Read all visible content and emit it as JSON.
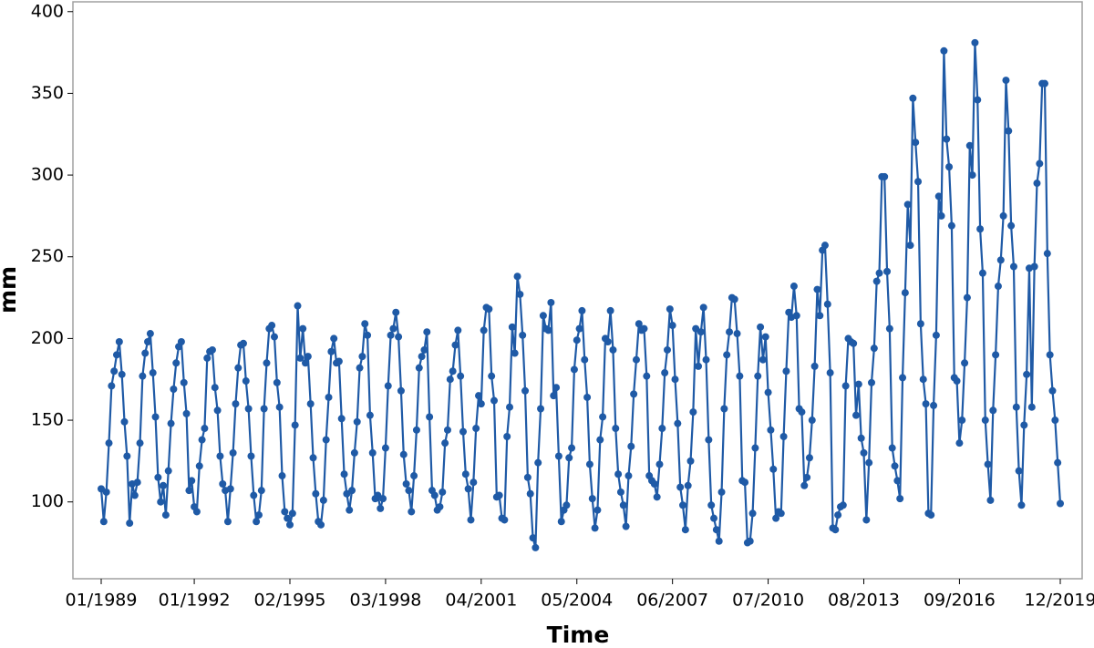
{
  "chart_data": {
    "type": "line",
    "x_label": "Time",
    "y_label": "mm",
    "color": "#1f5aa6",
    "x": [
      "01/1989",
      "02/1989",
      "03/1989",
      "04/1989",
      "05/1989",
      "06/1989",
      "07/1989",
      "08/1989",
      "09/1989",
      "10/1989",
      "11/1989",
      "12/1989",
      "01/1990",
      "02/1990",
      "03/1990",
      "04/1990",
      "05/1990",
      "06/1990",
      "07/1990",
      "08/1990",
      "09/1990",
      "10/1990",
      "11/1990",
      "12/1990",
      "01/1991",
      "02/1991",
      "03/1991",
      "04/1991",
      "05/1991",
      "06/1991",
      "07/1991",
      "08/1991",
      "09/1991",
      "10/1991",
      "11/1991",
      "12/1991",
      "01/1992",
      "02/1992",
      "03/1992",
      "04/1992",
      "05/1992",
      "06/1992",
      "07/1992",
      "08/1992",
      "09/1992",
      "10/1992",
      "11/1992",
      "12/1992",
      "01/1993",
      "02/1993",
      "03/1993",
      "04/1993",
      "05/1993",
      "06/1993",
      "07/1993",
      "08/1993",
      "09/1993",
      "10/1993",
      "11/1993",
      "12/1993",
      "01/1994",
      "02/1994",
      "03/1994",
      "04/1994",
      "05/1994",
      "06/1994",
      "07/1994",
      "08/1994",
      "09/1994",
      "10/1994",
      "11/1994",
      "12/1994",
      "01/1995",
      "02/1995",
      "03/1995",
      "04/1995",
      "05/1995",
      "06/1995",
      "07/1995",
      "08/1995",
      "09/1995",
      "10/1995",
      "11/1995",
      "12/1995",
      "01/1996",
      "02/1996",
      "03/1996",
      "04/1996",
      "05/1996",
      "06/1996",
      "07/1996",
      "08/1996",
      "09/1996",
      "10/1996",
      "11/1996",
      "12/1996",
      "01/1997",
      "02/1997",
      "03/1997",
      "04/1997",
      "05/1997",
      "06/1997",
      "07/1997",
      "08/1997",
      "09/1997",
      "10/1997",
      "11/1997",
      "12/1997",
      "01/1998",
      "02/1998",
      "03/1998",
      "04/1998",
      "05/1998",
      "06/1998",
      "07/1998",
      "08/1998",
      "09/1998",
      "10/1998",
      "11/1998",
      "12/1998",
      "01/1999",
      "02/1999",
      "03/1999",
      "04/1999",
      "05/1999",
      "06/1999",
      "07/1999",
      "08/1999",
      "09/1999",
      "10/1999",
      "11/1999",
      "12/1999",
      "01/2000",
      "02/2000",
      "03/2000",
      "04/2000",
      "05/2000",
      "06/2000",
      "07/2000",
      "08/2000",
      "09/2000",
      "10/2000",
      "11/2000",
      "12/2000",
      "01/2001",
      "02/2001",
      "03/2001",
      "04/2001",
      "05/2001",
      "06/2001",
      "07/2001",
      "08/2001",
      "09/2001",
      "10/2001",
      "11/2001",
      "12/2001",
      "01/2002",
      "02/2002",
      "03/2002",
      "04/2002",
      "05/2002",
      "06/2002",
      "07/2002",
      "08/2002",
      "09/2002",
      "10/2002",
      "11/2002",
      "12/2002",
      "01/2003",
      "02/2003",
      "03/2003",
      "04/2003",
      "05/2003",
      "06/2003",
      "07/2003",
      "08/2003",
      "09/2003",
      "10/2003",
      "11/2003",
      "12/2003",
      "01/2004",
      "02/2004",
      "03/2004",
      "04/2004",
      "05/2004",
      "06/2004",
      "07/2004",
      "08/2004",
      "09/2004",
      "10/2004",
      "11/2004",
      "12/2004",
      "01/2005",
      "02/2005",
      "03/2005",
      "04/2005",
      "05/2005",
      "06/2005",
      "07/2005",
      "08/2005",
      "09/2005",
      "10/2005",
      "11/2005",
      "12/2005",
      "01/2006",
      "02/2006",
      "03/2006",
      "04/2006",
      "05/2006",
      "06/2006",
      "07/2006",
      "08/2006",
      "09/2006",
      "10/2006",
      "11/2006",
      "12/2006",
      "01/2007",
      "02/2007",
      "03/2007",
      "04/2007",
      "05/2007",
      "06/2007",
      "07/2007",
      "08/2007",
      "09/2007",
      "10/2007",
      "11/2007",
      "12/2007",
      "01/2008",
      "02/2008",
      "03/2008",
      "04/2008",
      "05/2008",
      "06/2008",
      "07/2008",
      "08/2008",
      "09/2008",
      "10/2008",
      "11/2008",
      "12/2008",
      "01/2009",
      "02/2009",
      "03/2009",
      "04/2009",
      "05/2009",
      "06/2009",
      "07/2009",
      "08/2009",
      "09/2009",
      "10/2009",
      "11/2009",
      "12/2009",
      "01/2010",
      "02/2010",
      "03/2010",
      "04/2010",
      "05/2010",
      "06/2010",
      "07/2010",
      "08/2010",
      "09/2010",
      "10/2010",
      "11/2010",
      "12/2010",
      "01/2011",
      "02/2011",
      "03/2011",
      "04/2011",
      "05/2011",
      "06/2011",
      "07/2011",
      "08/2011",
      "09/2011",
      "10/2011",
      "11/2011",
      "12/2011",
      "01/2012",
      "02/2012",
      "03/2012",
      "04/2012",
      "05/2012",
      "06/2012",
      "07/2012",
      "08/2012",
      "09/2012",
      "10/2012",
      "11/2012",
      "12/2012",
      "01/2013",
      "02/2013",
      "03/2013",
      "04/2013",
      "05/2013",
      "06/2013",
      "07/2013",
      "08/2013",
      "09/2013",
      "10/2013",
      "11/2013",
      "12/2013",
      "01/2014",
      "02/2014",
      "03/2014",
      "04/2014",
      "05/2014",
      "06/2014",
      "07/2014",
      "08/2014",
      "09/2014",
      "10/2014",
      "11/2014",
      "12/2014",
      "01/2015",
      "02/2015",
      "03/2015",
      "04/2015",
      "05/2015",
      "06/2015",
      "07/2015",
      "08/2015",
      "09/2015",
      "10/2015",
      "11/2015",
      "12/2015",
      "01/2016",
      "02/2016",
      "03/2016",
      "04/2016",
      "05/2016",
      "06/2016",
      "07/2016",
      "08/2016",
      "09/2016",
      "10/2016",
      "11/2016",
      "12/2016",
      "01/2017",
      "02/2017",
      "03/2017",
      "04/2017",
      "05/2017",
      "06/2017",
      "07/2017",
      "08/2017",
      "09/2017",
      "10/2017",
      "11/2017",
      "12/2017",
      "01/2018",
      "02/2018",
      "03/2018",
      "04/2018",
      "05/2018",
      "06/2018",
      "07/2018",
      "08/2018",
      "09/2018",
      "10/2018",
      "11/2018",
      "12/2018",
      "01/2019",
      "02/2019",
      "03/2019",
      "04/2019",
      "05/2019",
      "06/2019",
      "07/2019",
      "08/2019",
      "09/2019",
      "10/2019",
      "11/2019",
      "12/2019"
    ],
    "values": [
      108,
      88,
      106,
      136,
      171,
      180,
      190,
      198,
      178,
      149,
      128,
      87,
      111,
      104,
      112,
      136,
      177,
      191,
      198,
      203,
      179,
      152,
      115,
      100,
      110,
      92,
      119,
      148,
      169,
      185,
      195,
      198,
      173,
      154,
      107,
      113,
      97,
      94,
      122,
      138,
      145,
      188,
      192,
      193,
      170,
      156,
      128,
      111,
      107,
      88,
      108,
      130,
      160,
      182,
      196,
      197,
      174,
      157,
      128,
      104,
      88,
      92,
      107,
      157,
      185,
      206,
      208,
      201,
      173,
      158,
      116,
      94,
      90,
      86,
      93,
      147,
      220,
      188,
      206,
      185,
      189,
      160,
      127,
      105,
      88,
      86,
      101,
      138,
      164,
      192,
      200,
      185,
      186,
      151,
      117,
      105,
      95,
      107,
      130,
      149,
      182,
      189,
      209,
      202,
      153,
      130,
      102,
      104,
      96,
      102,
      133,
      171,
      202,
      206,
      216,
      201,
      168,
      129,
      111,
      107,
      94,
      116,
      144,
      182,
      189,
      193,
      204,
      152,
      107,
      104,
      95,
      97,
      106,
      136,
      144,
      175,
      180,
      196,
      205,
      177,
      143,
      117,
      108,
      89,
      112,
      145,
      165,
      160,
      205,
      219,
      218,
      177,
      162,
      103,
      104,
      90,
      89,
      140,
      158,
      207,
      191,
      238,
      227,
      202,
      168,
      115,
      105,
      78,
      72,
      124,
      157,
      214,
      206,
      205,
      222,
      165,
      170,
      128,
      88,
      95,
      98,
      127,
      133,
      181,
      199,
      206,
      217,
      187,
      164,
      123,
      102,
      84,
      95,
      138,
      152,
      200,
      198,
      217,
      193,
      145,
      117,
      106,
      98,
      85,
      116,
      134,
      166,
      187,
      209,
      205,
      206,
      177,
      116,
      113,
      111,
      103,
      123,
      145,
      179,
      193,
      218,
      208,
      175,
      148,
      109,
      98,
      83,
      110,
      125,
      155,
      206,
      183,
      204,
      219,
      187,
      138,
      98,
      90,
      83,
      76,
      106,
      157,
      190,
      204,
      225,
      224,
      203,
      177,
      113,
      112,
      75,
      76,
      93,
      133,
      177,
      207,
      187,
      201,
      167,
      144,
      120,
      90,
      94,
      93,
      140,
      180,
      216,
      213,
      232,
      214,
      157,
      155,
      110,
      115,
      127,
      150,
      183,
      230,
      214,
      254,
      257,
      221,
      179,
      84,
      83,
      92,
      97,
      98,
      171,
      200,
      198,
      197,
      153,
      172,
      139,
      130,
      89,
      124,
      173,
      194,
      235,
      240,
      299,
      299,
      241,
      206,
      133,
      122,
      113,
      102,
      176,
      228,
      282,
      257,
      347,
      320,
      296,
      209,
      175,
      160,
      93,
      92,
      159,
      202,
      287,
      275,
      376,
      322,
      305,
      269,
      176,
      174,
      136,
      150,
      185,
      225,
      318,
      300,
      381,
      346,
      267,
      240,
      150,
      123,
      101,
      156,
      190,
      232,
      248,
      275,
      358,
      327,
      269,
      244,
      158,
      119,
      98,
      147,
      178,
      243,
      158,
      244,
      295,
      307,
      356,
      356,
      252,
      190,
      168,
      150,
      124,
      99
    ],
    "xticks": [
      "01/1989",
      "01/1992",
      "02/1995",
      "03/1998",
      "04/2001",
      "05/2004",
      "06/2007",
      "07/2010",
      "08/2013",
      "09/2016",
      "12/2019"
    ],
    "ylim": [
      53,
      406
    ],
    "yticks": [
      100,
      150,
      200,
      250,
      300,
      350,
      400
    ]
  }
}
